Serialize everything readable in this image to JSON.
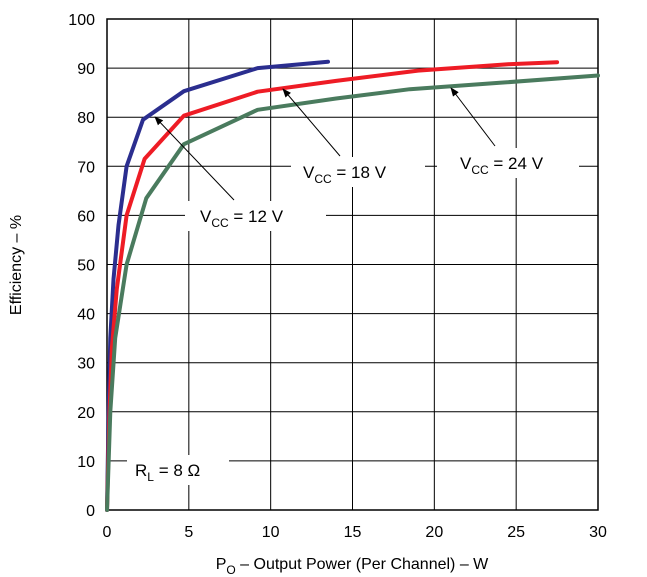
{
  "chart_data": {
    "type": "line",
    "xlabel": {
      "prefix": "P",
      "sub": "O",
      "rest": " – Output Power (Per Channel) – W"
    },
    "ylabel": "Efficiency – %",
    "xlim": [
      0,
      30
    ],
    "ylim": [
      0,
      100
    ],
    "xticks": [
      0,
      5,
      10,
      15,
      20,
      25,
      30
    ],
    "yticks": [
      0,
      10,
      20,
      30,
      40,
      50,
      60,
      70,
      80,
      90,
      100
    ],
    "grid": true,
    "colors": {
      "vcc12": "#2b2e8f",
      "vcc18": "#ee1c25",
      "vcc24": "#4a7b5e"
    },
    "series": [
      {
        "key": "vcc12",
        "label": {
          "pre": "V",
          "sub": "CC",
          "post": " = 12 V"
        },
        "x": [
          0,
          0.1,
          0.2,
          0.4,
          0.7,
          1.2,
          2.2,
          4.7,
          9.2,
          13.5
        ],
        "y": [
          0,
          20,
          35,
          47,
          58,
          70,
          79.5,
          85.3,
          90,
          91.3
        ]
      },
      {
        "key": "vcc18",
        "label": {
          "pre": "V",
          "sub": "CC",
          "post": " = 18 V"
        },
        "x": [
          0,
          0.15,
          0.3,
          0.6,
          1.2,
          2.3,
          4.7,
          9.2,
          14,
          19,
          24.5,
          27.5
        ],
        "y": [
          0,
          20,
          33,
          45,
          60,
          71.5,
          80.3,
          85.2,
          87.4,
          89.5,
          90.8,
          91.2
        ]
      },
      {
        "key": "vcc24",
        "label": {
          "pre": "V",
          "sub": "CC",
          "post": " = 24 V"
        },
        "x": [
          0,
          0.2,
          0.5,
          1.2,
          2.4,
          4.7,
          9.2,
          14,
          18.5,
          24,
          30
        ],
        "y": [
          0,
          20,
          35,
          50,
          63.5,
          74.5,
          81.5,
          83.8,
          85.7,
          87,
          88.5
        ]
      }
    ],
    "annotations": [
      {
        "target": "vcc12",
        "text": {
          "pre": "V",
          "sub": "CC",
          "post": " = 12 V"
        }
      },
      {
        "target": "vcc18",
        "text": {
          "pre": "V",
          "sub": "CC",
          "post": " = 18 V"
        }
      },
      {
        "target": "vcc24",
        "text": {
          "pre": "V",
          "sub": "CC",
          "post": " = 24 V"
        }
      },
      {
        "target": "load",
        "text": {
          "pre": "R",
          "sub": "L",
          "post": " = 8 Ω"
        }
      }
    ]
  }
}
